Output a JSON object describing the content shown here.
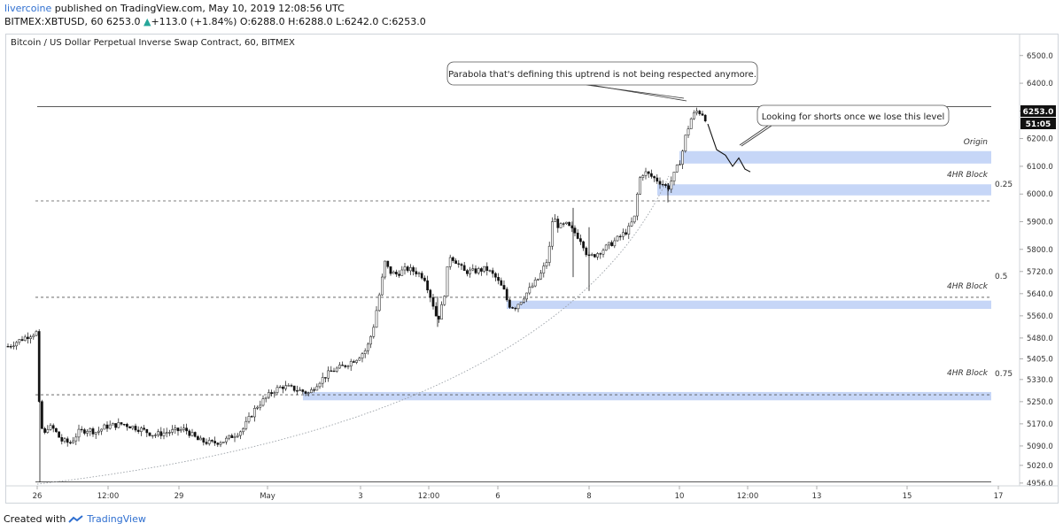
{
  "header": {
    "author": "livercoine",
    "published_text": "published on TradingView.com, May 10, 2019 12:08:56 UTC",
    "symbol_line": "BITMEX:XBTUSD, 60",
    "last": "6253.0",
    "change_arrow": "▲",
    "change": "+113.0 (+1.84%)",
    "o_label": "O:",
    "o": "6288.0",
    "h_label": "H:",
    "h": "6288.0",
    "l_label": "L:",
    "l": "6242.0",
    "c_label": "C:",
    "c": "6253.0"
  },
  "chart_title": "Bitcoin / US Dollar Perpetual Inverse Swap Contract, 60, BITMEX",
  "price_axis": {
    "ticks": [
      "6500.0",
      "6400.0",
      "6300.0",
      "6200.0",
      "6100.0",
      "6000.0",
      "5900.0",
      "5800.0",
      "5720.0",
      "5640.0",
      "5560.0",
      "5480.0",
      "5405.0",
      "5330.0",
      "5250.0",
      "5170.0",
      "5090.0",
      "5020.0",
      "4956.0"
    ],
    "last_price_label": "6253.0",
    "countdown_label": "51:05"
  },
  "time_axis": {
    "ticks": [
      "26",
      "12:00",
      "29",
      "May",
      "3",
      "12:00",
      "6",
      "8",
      "10",
      "12:00",
      "13",
      "15",
      "17"
    ]
  },
  "annotations": {
    "parabola_note": "Parabola that's defining this uptrend is not being respected anymore.",
    "shorts_note": "Looking for shorts once we lose this level"
  },
  "zones": {
    "origin": "Origin",
    "block_upper": "4HR Block",
    "block_mid": "4HR Block",
    "block_low": "4HR Block"
  },
  "fib_labels": {
    "f025": "0.25",
    "f05": "0.5",
    "f075": "0.75"
  },
  "footer": {
    "created_with": "Created with",
    "brand": "TradingView"
  },
  "colors": {
    "zone_fill": "#c6d6f7",
    "up": "#26a69a",
    "brand": "#2f6fd0",
    "last_price_bg": "#111111"
  },
  "chart_data": {
    "type": "candlestick",
    "title": "Bitcoin / US Dollar Perpetual Inverse Swap Contract, 60, BITMEX",
    "ylim": [
      4930,
      6560
    ],
    "path_anchors": [
      [
        0,
        5450
      ],
      [
        12,
        5470
      ],
      [
        24,
        5490
      ],
      [
        32,
        5500
      ],
      [
        34,
        5300
      ],
      [
        36,
        5200
      ],
      [
        40,
        5120
      ],
      [
        45,
        5160
      ],
      [
        52,
        5150
      ],
      [
        60,
        5110
      ],
      [
        70,
        5100
      ],
      [
        80,
        5140
      ],
      [
        90,
        5150
      ],
      [
        100,
        5140
      ],
      [
        110,
        5160
      ],
      [
        130,
        5170
      ],
      [
        150,
        5150
      ],
      [
        165,
        5130
      ],
      [
        180,
        5140
      ],
      [
        200,
        5150
      ],
      [
        215,
        5110
      ],
      [
        230,
        5100
      ],
      [
        245,
        5110
      ],
      [
        265,
        5150
      ],
      [
        280,
        5230
      ],
      [
        290,
        5260
      ],
      [
        300,
        5290
      ],
      [
        310,
        5305
      ],
      [
        318,
        5300
      ],
      [
        330,
        5290
      ],
      [
        340,
        5280
      ],
      [
        350,
        5320
      ],
      [
        365,
        5360
      ],
      [
        380,
        5380
      ],
      [
        395,
        5410
      ],
      [
        405,
        5440
      ],
      [
        412,
        5510
      ],
      [
        420,
        5650
      ],
      [
        426,
        5760
      ],
      [
        430,
        5720
      ],
      [
        438,
        5710
      ],
      [
        450,
        5730
      ],
      [
        460,
        5720
      ],
      [
        470,
        5700
      ],
      [
        480,
        5600
      ],
      [
        485,
        5540
      ],
      [
        492,
        5620
      ],
      [
        498,
        5780
      ],
      [
        505,
        5760
      ],
      [
        515,
        5720
      ],
      [
        525,
        5720
      ],
      [
        540,
        5730
      ],
      [
        550,
        5700
      ],
      [
        560,
        5650
      ],
      [
        565,
        5600
      ],
      [
        572,
        5590
      ],
      [
        580,
        5620
      ],
      [
        590,
        5660
      ],
      [
        600,
        5700
      ],
      [
        610,
        5770
      ],
      [
        615,
        5920
      ],
      [
        622,
        5880
      ],
      [
        630,
        5890
      ],
      [
        640,
        5860
      ],
      [
        648,
        5830
      ],
      [
        655,
        5770
      ],
      [
        662,
        5780
      ],
      [
        672,
        5800
      ],
      [
        685,
        5830
      ],
      [
        700,
        5870
      ],
      [
        708,
        5920
      ],
      [
        712,
        6050
      ],
      [
        718,
        6080
      ],
      [
        728,
        6060
      ],
      [
        738,
        6040
      ],
      [
        745,
        6020
      ],
      [
        752,
        6070
      ],
      [
        760,
        6130
      ],
      [
        765,
        6210
      ],
      [
        772,
        6280
      ],
      [
        778,
        6300
      ],
      [
        784,
        6290
      ],
      [
        790,
        6260
      ]
    ],
    "projected_path": [
      [
        790,
        6253
      ],
      [
        800,
        6160
      ],
      [
        810,
        6140
      ],
      [
        818,
        6100
      ],
      [
        825,
        6130
      ],
      [
        832,
        6090
      ],
      [
        838,
        6080
      ]
    ],
    "zones": [
      {
        "label": "Origin",
        "low": 6110,
        "high": 6155
      },
      {
        "label": "4HR Block",
        "low": 5995,
        "high": 6035
      },
      {
        "label": "4HR Block",
        "low": 5585,
        "high": 5615
      },
      {
        "label": "4HR Block",
        "low": 5255,
        "high": 5285
      }
    ],
    "levels": [
      {
        "label": "0.25",
        "price": 5975,
        "style": "dashed"
      },
      {
        "label": "0.5",
        "price": 5627,
        "style": "dashed"
      },
      {
        "label": "0.75",
        "price": 5275,
        "style": "dashed"
      },
      {
        "label": "",
        "price": 6315,
        "style": "solid"
      },
      {
        "label": "",
        "price": 4960,
        "style": "solid"
      }
    ]
  }
}
